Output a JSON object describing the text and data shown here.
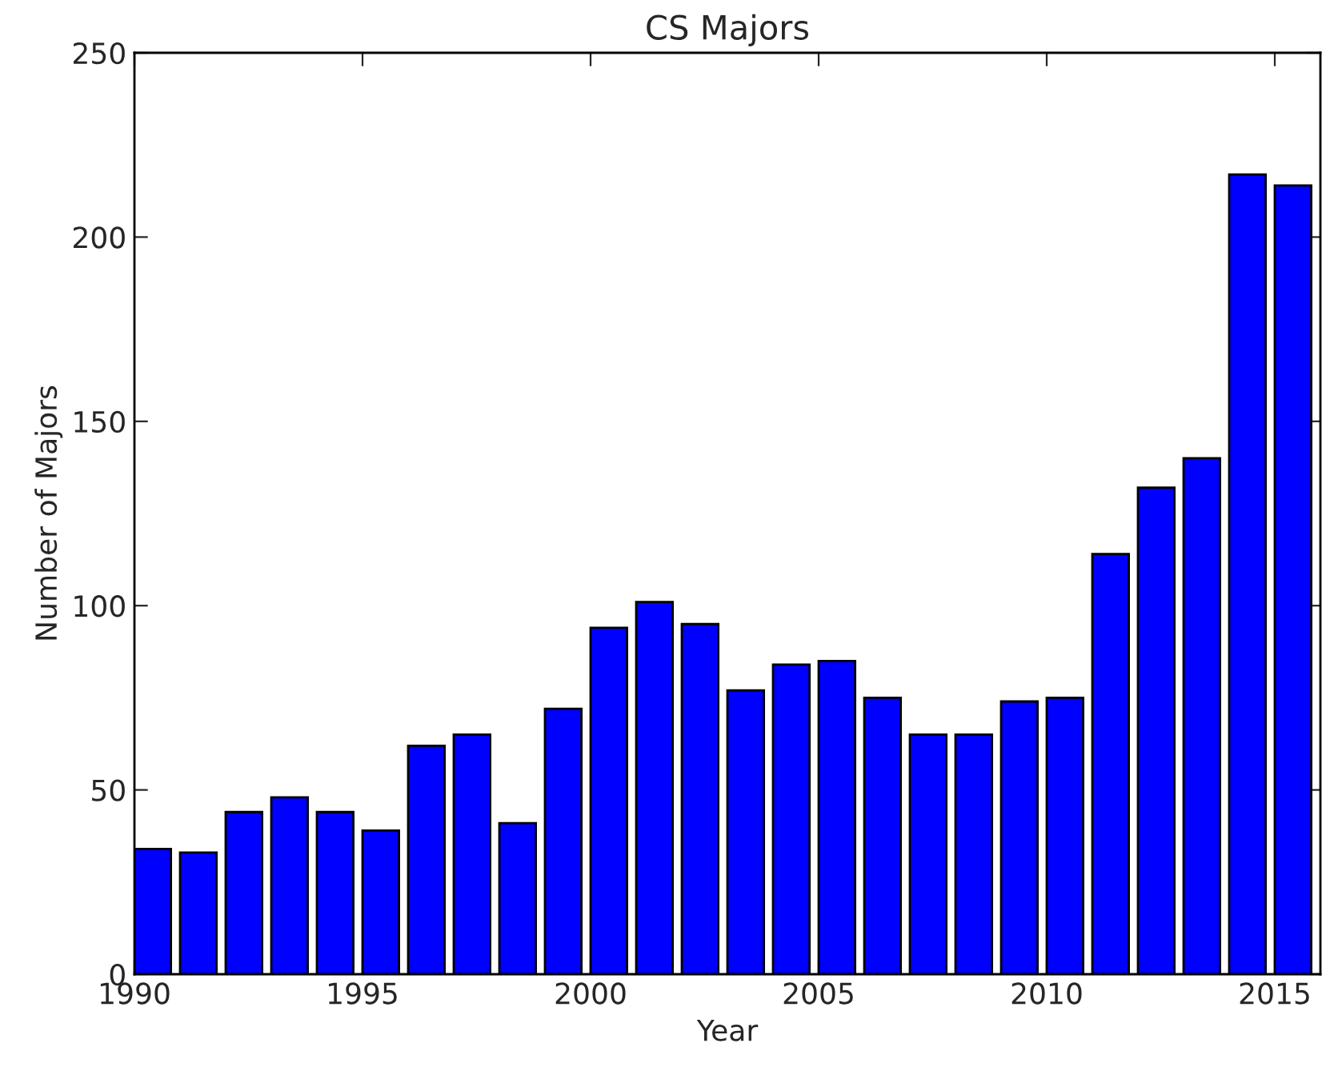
{
  "chart_data": {
    "type": "bar",
    "title": "CS Majors",
    "xlabel": "Year",
    "ylabel": "Number of Majors",
    "x": [
      1990.4,
      1991.4,
      1992.4,
      1993.4,
      1994.4,
      1995.4,
      1996.4,
      1997.4,
      1998.4,
      1999.4,
      2000.4,
      2001.4,
      2002.4,
      2003.4,
      2004.4,
      2005.4,
      2006.4,
      2007.4,
      2008.4,
      2009.4,
      2010.4,
      2011.4,
      2012.4,
      2013.4,
      2014.4,
      2015.4
    ],
    "values": [
      34,
      33,
      44,
      48,
      44,
      39,
      62,
      65,
      41,
      72,
      94,
      101,
      95,
      77,
      84,
      85,
      75,
      65,
      65,
      74,
      75,
      114,
      132,
      140,
      217,
      214
    ],
    "color": "#0000ff",
    "xlim": [
      1990,
      2016
    ],
    "xticks": [
      1990,
      1995,
      2000,
      2005,
      2010,
      2015
    ],
    "ylim": [
      0,
      250
    ],
    "yticks": [
      0,
      50,
      100,
      150,
      200,
      250
    ],
    "grid": false,
    "legend": false
  }
}
